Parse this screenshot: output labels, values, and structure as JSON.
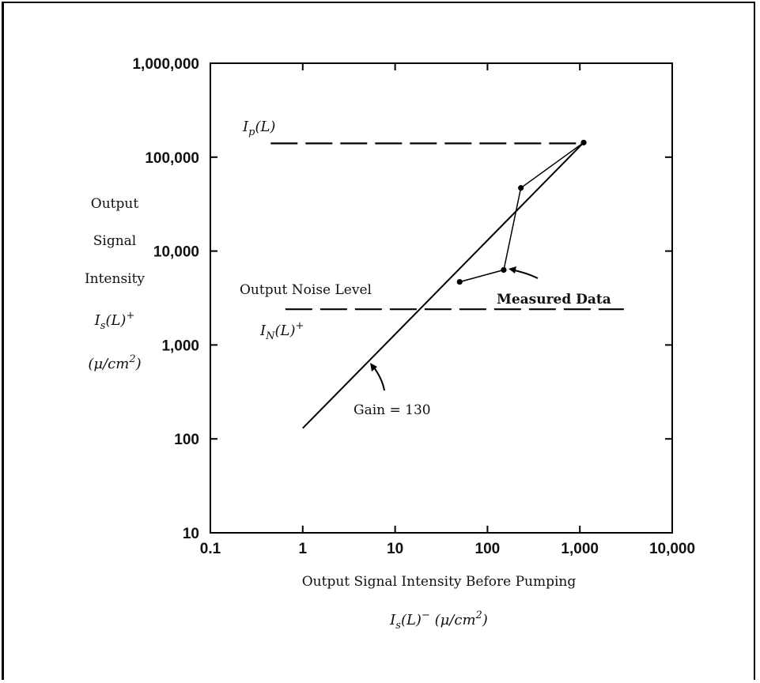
{
  "chart_data": {
    "type": "line",
    "xscale": "log",
    "yscale": "log",
    "xlim": [
      0.1,
      10000
    ],
    "ylim": [
      10,
      1000000
    ],
    "x_ticks": [
      0.1,
      1,
      10,
      100,
      1000,
      10000
    ],
    "y_ticks": [
      10,
      100,
      1000,
      10000,
      100000,
      1000000
    ],
    "x_tick_labels": [
      "0.1",
      "1",
      "10",
      "100",
      "1,000",
      "10,000"
    ],
    "y_tick_labels": [
      "10",
      "100",
      "1,000",
      "10,000",
      "100,000",
      "1,000,000"
    ],
    "xlabel": "Output Signal Intensity Before Pumping",
    "xlabel_math": "I_s(L)^− (μ/cm²)",
    "ylabel_lines": [
      "Output",
      "Signal",
      "Intensity"
    ],
    "ylabel_math_1": "I_s(L)^+",
    "ylabel_math_2": "(μ/cm²)",
    "grid": false,
    "series": [
      {
        "name": "Gain = 130",
        "style": "solid",
        "points": [
          [
            1,
            130
          ],
          [
            1100,
            143000
          ]
        ]
      },
      {
        "name": "Measured Data",
        "style": "solid-with-markers",
        "points": [
          [
            50,
            4700
          ],
          [
            150,
            6300
          ],
          [
            230,
            47000
          ],
          [
            1100,
            143000
          ]
        ]
      },
      {
        "name": "I_p(L)",
        "style": "dashed",
        "points": [
          [
            0.45,
            140000
          ],
          [
            1100,
            140000
          ]
        ]
      },
      {
        "name": "Output Noise Level",
        "style": "dashed",
        "points": [
          [
            0.65,
            2400
          ],
          [
            3000,
            2400
          ]
        ]
      }
    ],
    "annotations": {
      "ip_label": "I_p(L)",
      "noise_label": "Output Noise Level",
      "noise_math": "I_N(L)^+",
      "measured_label": "Measured Data",
      "gain_label": "Gain = 130"
    }
  }
}
